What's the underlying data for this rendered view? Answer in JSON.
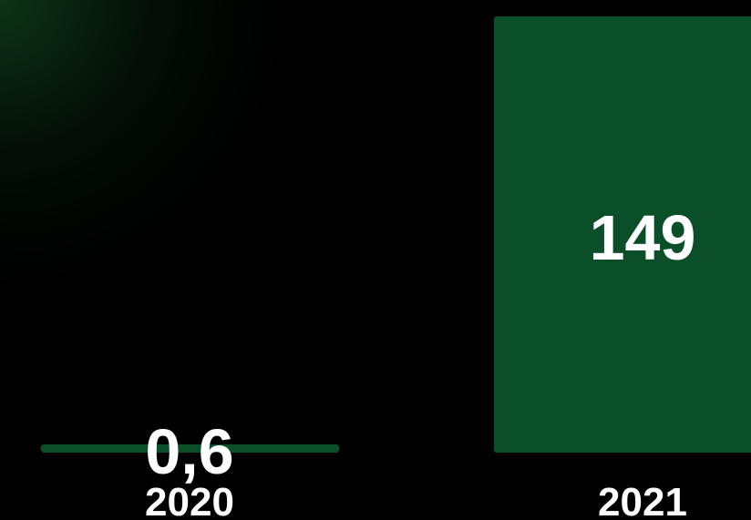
{
  "chart_data": {
    "type": "bar",
    "categories": [
      "2020",
      "2021"
    ],
    "values": [
      0.6,
      149
    ],
    "value_labels": [
      "0,6",
      "149"
    ],
    "bar_color": "#0b4f29",
    "background_color": "#000000",
    "text_color": "#ffffff",
    "grid": false,
    "legend": "none"
  }
}
